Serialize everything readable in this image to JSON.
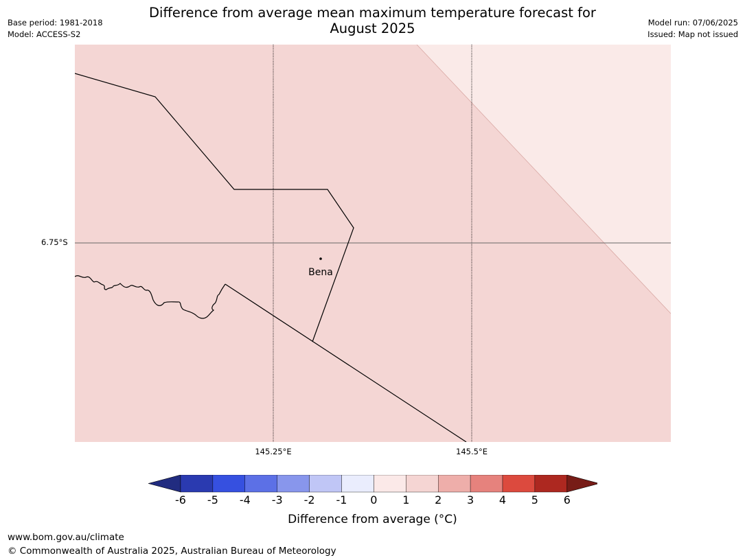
{
  "title_line1": "Difference from average mean maximum temperature forecast for",
  "title_line2": "August 2025",
  "meta_left": {
    "base_period": "Base period: 1981-2018",
    "model": "Model: ACCESS-S2"
  },
  "meta_right": {
    "model_run": "Model run: 07/06/2025",
    "issued": "Issued: Map not issued"
  },
  "map": {
    "location_label": "Bena",
    "lat_label": "6.75°S",
    "lon_labels": [
      "145.25°E",
      "145.5°E"
    ],
    "fill_colors": {
      "category_1_to_2": "#f4d6d4",
      "category_0_to_1": "#faeae8"
    }
  },
  "colorbar": {
    "label": "Difference from average (°C)",
    "ticks": [
      "-6",
      "-5",
      "-4",
      "-3",
      "-2",
      "-1",
      "0",
      "1",
      "2",
      "3",
      "4",
      "5",
      "6"
    ],
    "colors": [
      "#212c80",
      "#2a3ab0",
      "#3650e0",
      "#5c70e6",
      "#8896ec",
      "#c0c6f6",
      "#eaedfd",
      "#fbe9e8",
      "#f5d5d3",
      "#eeaeaa",
      "#e6827d",
      "#dc4a3e",
      "#ad2820",
      "#771c17"
    ]
  },
  "footer": {
    "url": "www.bom.gov.au/climate",
    "copyright": "© Commonwealth of Australia 2025, Australian Bureau of Meteorology"
  }
}
